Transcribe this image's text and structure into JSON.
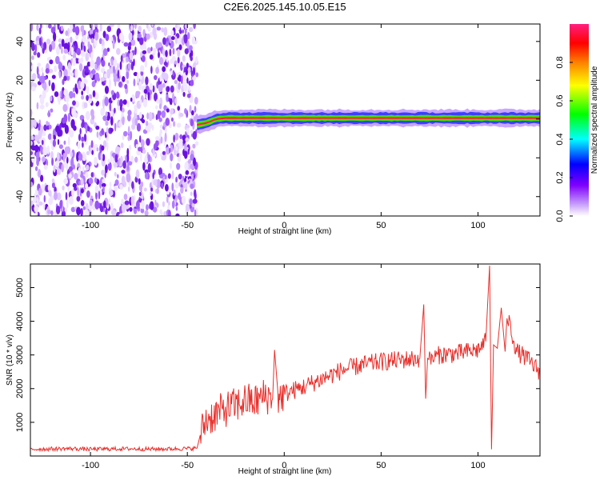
{
  "title": "C2E6.2025.145.10.05.E15",
  "colors": {
    "snr_line": "#e8302c",
    "noise_dots": "#7a28e6",
    "ridge_core": "#ff2040",
    "ridge_mid": "#44e000",
    "ridge_edge": "#3a40ff",
    "ridge_halo": "#c9a6ff",
    "colormap": [
      "#ffffff",
      "#c8a0ff",
      "#8000ff",
      "#0000ff",
      "#00ffff",
      "#00ff00",
      "#ffff00",
      "#ff8000",
      "#ff0000",
      "#ff2080"
    ]
  },
  "chart_data": [
    {
      "type": "heatmap",
      "xlabel": "Height of straight line (km)",
      "ylabel": "Frequency (Hz)",
      "xlim": [
        -131,
        132
      ],
      "ylim": [
        -50,
        49
      ],
      "xticks": [
        -100,
        -50,
        0,
        50,
        100
      ],
      "yticks": [
        -40,
        -20,
        0,
        20,
        40
      ],
      "noise_region_x": [
        -131,
        -45
      ],
      "signal_region_x": [
        -45,
        132
      ],
      "ridge": {
        "x": [
          -45,
          -40,
          -35,
          -30,
          -20,
          -10,
          0,
          20,
          40,
          60,
          80,
          100,
          120,
          132
        ],
        "frequency": [
          -3,
          -2,
          0,
          0.5,
          0.5,
          0.5,
          0.5,
          0.5,
          0.5,
          0.5,
          0.5,
          0.5,
          0.5,
          0.5
        ]
      },
      "colorbar": {
        "label": "Normalized spectral amplitude",
        "range": [
          0,
          1
        ],
        "ticks": [
          "0.0",
          "0.2",
          "0.4",
          "0.6",
          "0.8"
        ]
      }
    },
    {
      "type": "line",
      "xlabel": "Height of straight line (km)",
      "ylabel": "SNR (10 * v/v)",
      "xlim": [
        -131,
        132
      ],
      "ylim": [
        0,
        5700
      ],
      "xticks": [
        -100,
        -50,
        0,
        50,
        100
      ],
      "yticks": [
        1000,
        2000,
        3000,
        4000,
        5000
      ],
      "series": [
        {
          "x": [
            -131,
            -120,
            -110,
            -100,
            -90,
            -80,
            -70,
            -60,
            -50,
            -45,
            -43,
            -40,
            -35,
            -30,
            -25,
            -20,
            -15,
            -10,
            -6,
            -5,
            -3,
            0,
            10,
            20,
            30,
            40,
            50,
            60,
            70,
            72,
            73,
            74,
            75,
            80,
            90,
            100,
            104,
            106,
            107,
            108,
            110,
            112,
            114,
            115,
            120,
            125,
            132
          ],
          "values": [
            200,
            210,
            220,
            200,
            210,
            215,
            205,
            210,
            220,
            230,
            700,
            1100,
            1250,
            1400,
            1500,
            1650,
            1600,
            1800,
            1700,
            3150,
            1700,
            1850,
            2050,
            2300,
            2550,
            2700,
            2800,
            2850,
            2900,
            4500,
            1700,
            2900,
            2850,
            3000,
            3050,
            3150,
            3400,
            5650,
            200,
            3300,
            3200,
            4400,
            3100,
            4200,
            3100,
            2900,
            2500
          ]
        }
      ]
    }
  ]
}
